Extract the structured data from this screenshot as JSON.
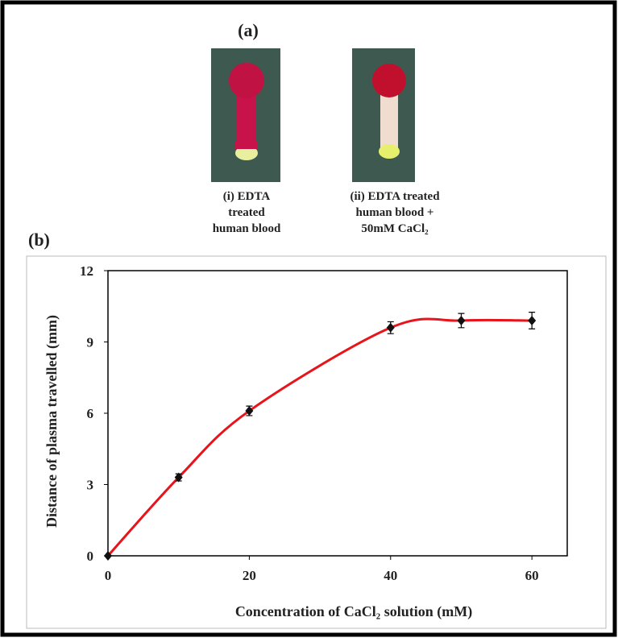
{
  "panel_a": {
    "label": "(a)",
    "captions": [
      [
        "(i) EDTA",
        "treated",
        "human blood"
      ],
      [
        "(ii) EDTA treated",
        "human blood +",
        "50mM CaCl₂"
      ]
    ]
  },
  "panel_b_label": "(b)",
  "chart_data": {
    "type": "line",
    "x_label": "Concentration of CaCl₂ solution (mM)",
    "y_label": "Distance of plasma travelled (mm)",
    "x": [
      0,
      10,
      20,
      40,
      50,
      60
    ],
    "series": [
      {
        "color": "#e8141b",
        "marker_color": "#111111",
        "values": [
          0,
          3.3,
          6.1,
          9.6,
          9.9,
          9.9
        ],
        "errors": [
          0,
          0.15,
          0.2,
          0.25,
          0.3,
          0.35
        ]
      }
    ],
    "xlim": [
      0,
      65
    ],
    "ylim": [
      0,
      12
    ],
    "xticks": [
      0,
      20,
      40,
      60
    ],
    "yticks": [
      0,
      3,
      6,
      9,
      12
    ],
    "smooth": true
  }
}
